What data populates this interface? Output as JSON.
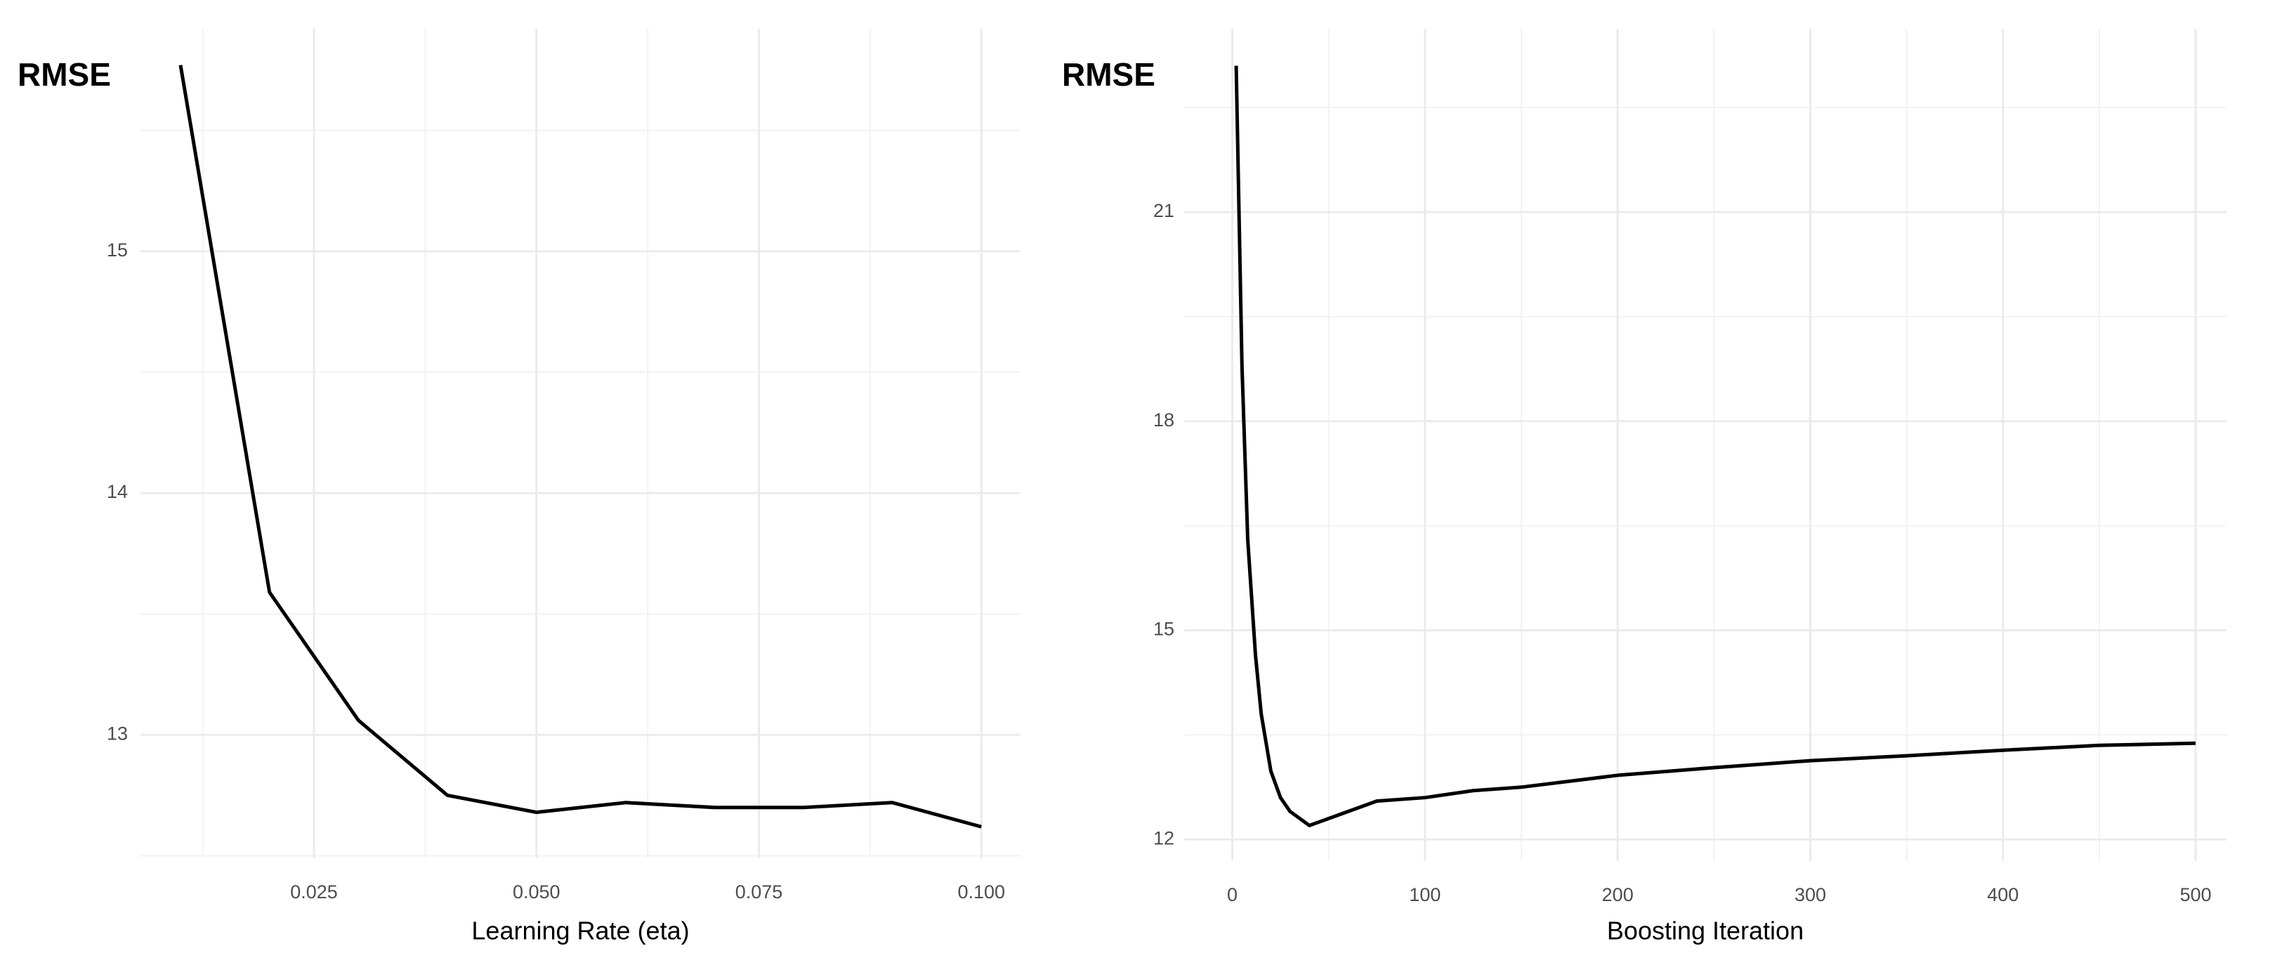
{
  "chart_data": [
    {
      "type": "line",
      "ylabel": "RMSE",
      "xlabel": "Learning Rate (eta)",
      "x": [
        0.01,
        0.02,
        0.03,
        0.04,
        0.05,
        0.06,
        0.07,
        0.08,
        0.09,
        0.1
      ],
      "series": [
        {
          "color": "#000000",
          "values": [
            15.77,
            13.59,
            13.06,
            12.75,
            12.68,
            12.72,
            12.7,
            12.7,
            12.72,
            12.62
          ]
        }
      ],
      "xlim": [
        0.0055,
        0.1044
      ],
      "ylim": [
        12.49,
        15.92
      ],
      "xticks": [
        {
          "value": 0.025,
          "label": "0.025"
        },
        {
          "value": 0.05,
          "label": "0.050"
        },
        {
          "value": 0.075,
          "label": "0.075"
        },
        {
          "value": 0.1,
          "label": "0.100"
        }
      ],
      "yticks": [
        13,
        14,
        15
      ],
      "grid": true
    },
    {
      "type": "line",
      "ylabel": "RMSE",
      "xlabel": "Boosting Iteration",
      "x": [
        2,
        5,
        8,
        12,
        15,
        20,
        25,
        30,
        40,
        45,
        60,
        75,
        100,
        125,
        150,
        200,
        250,
        300,
        350,
        400,
        450,
        500
      ],
      "series": [
        {
          "color": "#000000",
          "values": [
            23.1,
            18.8,
            16.3,
            14.65,
            13.8,
            12.98,
            12.6,
            12.4,
            12.2,
            12.25,
            12.4,
            12.55,
            12.6,
            12.7,
            12.75,
            12.92,
            13.03,
            13.13,
            13.2,
            13.28,
            13.35,
            13.38
          ]
        }
      ],
      "xlim": [
        -25,
        516
      ],
      "ylim": [
        11.69,
        23.63
      ],
      "xticks": [
        0,
        100,
        200,
        300,
        400,
        500
      ],
      "yticks": [
        12,
        15,
        18,
        21
      ],
      "grid": true
    }
  ]
}
